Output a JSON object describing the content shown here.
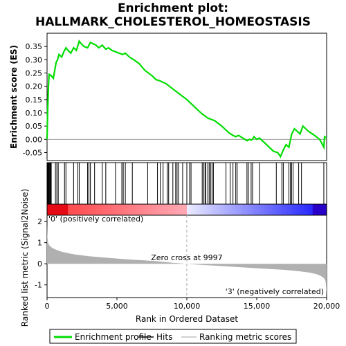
{
  "title_line1": "Enrichment plot:",
  "title_line2": "HALLMARK_CHOLESTEROL_HOMEOSTASIS",
  "chart_data": {
    "type": "line",
    "panels": [
      {
        "name": "enrichment",
        "ylabel": "Enrichment score (ES)",
        "ylim": [
          -0.08,
          0.4
        ],
        "yticks": [
          "0.35",
          "0.30",
          "0.25",
          "0.20",
          "0.15",
          "0.10",
          "0.05",
          "0.00",
          "-0.05"
        ],
        "ytick_values": [
          0.35,
          0.3,
          0.25,
          0.2,
          0.15,
          0.1,
          0.05,
          0.0,
          -0.05
        ],
        "series": [
          {
            "name": "Enrichment profile",
            "color": "#00dd00",
            "x": [
              0,
              40,
              100,
              150,
              300,
              450,
              650,
              750,
              850,
              1050,
              1200,
              1350,
              1500,
              1700,
              1900,
              2100,
              2300,
              2450,
              2650,
              2900,
              3100,
              3300,
              3500,
              3700,
              3950,
              4200,
              4400,
              4650,
              4900,
              5150,
              5400,
              5600,
              5900,
              6200,
              6600,
              7000,
              7500,
              7800,
              8100,
              8500,
              9000,
              9500,
              10000,
              10500,
              11000,
              11500,
              12000,
              12500,
              13000,
              13300,
              13500,
              13700,
              14000,
              14300,
              14500,
              14600,
              14700,
              14800,
              15000,
              15200,
              15500,
              15800,
              16000,
              16200,
              16500,
              16700,
              16900,
              17100,
              17300,
              17400,
              17500,
              17700,
              17900,
              18100,
              18300,
              18500,
              18700,
              19000,
              19500,
              19800,
              19850,
              20000
            ],
            "y": [
              0.0,
              0.1,
              0.2,
              0.245,
              0.24,
              0.23,
              0.29,
              0.3,
              0.32,
              0.31,
              0.33,
              0.345,
              0.335,
              0.325,
              0.345,
              0.335,
              0.37,
              0.36,
              0.35,
              0.345,
              0.365,
              0.36,
              0.355,
              0.345,
              0.355,
              0.34,
              0.345,
              0.335,
              0.33,
              0.325,
              0.32,
              0.325,
              0.31,
              0.3,
              0.285,
              0.26,
              0.24,
              0.225,
              0.22,
              0.21,
              0.19,
              0.17,
              0.15,
              0.125,
              0.1,
              0.08,
              0.07,
              0.05,
              0.025,
              0.015,
              0.01,
              0.015,
              0.005,
              -0.005,
              0.0,
              -0.003,
              0.0,
              0.01,
              0.0,
              0.005,
              -0.01,
              -0.025,
              -0.035,
              -0.045,
              -0.05,
              -0.065,
              -0.04,
              -0.02,
              -0.03,
              -0.005,
              0.02,
              0.04,
              0.03,
              0.02,
              0.05,
              0.04,
              0.03,
              0.02,
              0.0,
              -0.03,
              0.01,
              0.005
            ]
          }
        ]
      },
      {
        "name": "hits",
        "hit_positions": [
          30,
          60,
          90,
          130,
          170,
          220,
          260,
          300,
          600,
          700,
          800,
          1250,
          1350,
          1900,
          2200,
          2300,
          2900,
          3000,
          3100,
          3400,
          3950,
          4200,
          4900,
          5350,
          5450,
          5600,
          6100,
          7200,
          7900,
          8100,
          8300,
          8600,
          8700,
          9000,
          9200,
          9300,
          9400,
          9700,
          10000,
          10200,
          10300,
          11100,
          11200,
          11300,
          11350,
          11500,
          11600,
          11700,
          11800,
          11900,
          12800,
          13100,
          13300,
          13500,
          13600,
          14300,
          14400,
          14600,
          14700,
          15200,
          16400,
          16800,
          16900,
          17300,
          17400,
          17500,
          17600,
          18000,
          18200,
          19800
        ]
      },
      {
        "name": "ranked_metric",
        "ylabel": "Ranked list metric (Signal2Noise)",
        "ylim": [
          -1.6,
          2.3
        ],
        "yticks": [
          "2",
          "1",
          "0",
          "-1"
        ],
        "ytick_values": [
          2,
          1,
          0,
          -1
        ],
        "curve_x": [
          0,
          20,
          60,
          120,
          200,
          400,
          700,
          1000,
          1500,
          2000,
          3000,
          4000,
          5000,
          6000,
          7000,
          8000,
          9000,
          9997,
          11000,
          12000,
          13000,
          14000,
          15000,
          16000,
          17000,
          18000,
          18800,
          19300,
          19600,
          19800,
          19900,
          19950,
          20000
        ],
        "curve_y": [
          1.9,
          1.35,
          1.05,
          0.92,
          0.84,
          0.74,
          0.65,
          0.58,
          0.5,
          0.44,
          0.36,
          0.3,
          0.25,
          0.2,
          0.16,
          0.11,
          0.05,
          0.0,
          -0.05,
          -0.09,
          -0.13,
          -0.17,
          -0.21,
          -0.25,
          -0.29,
          -0.35,
          -0.42,
          -0.5,
          -0.58,
          -0.68,
          -0.78,
          -0.95,
          -1.5
        ],
        "zero_cross_text": "Zero cross at 9997",
        "zero_cross_x": 9997,
        "pos_label": "'0' (positively correlated)",
        "neg_label": "'3' (negatively correlated)"
      }
    ],
    "xlabel": "Rank in Ordered Dataset",
    "xlim": [
      0,
      20000
    ],
    "xticks": [
      "0",
      "5,000",
      "10,000",
      "15,000",
      "20,000"
    ],
    "xtick_values": [
      0,
      5000,
      10000,
      15000,
      20000
    ],
    "legend": {
      "placement": "bottom",
      "entries": [
        "Enrichment profile",
        "Hits",
        "Ranking metric scores"
      ]
    },
    "colors": {
      "profile": "#00dd00",
      "hits": "#000000",
      "metric_fill": "#b0b0b0",
      "positive": "#ff0000",
      "negative": "#0000ff"
    }
  }
}
